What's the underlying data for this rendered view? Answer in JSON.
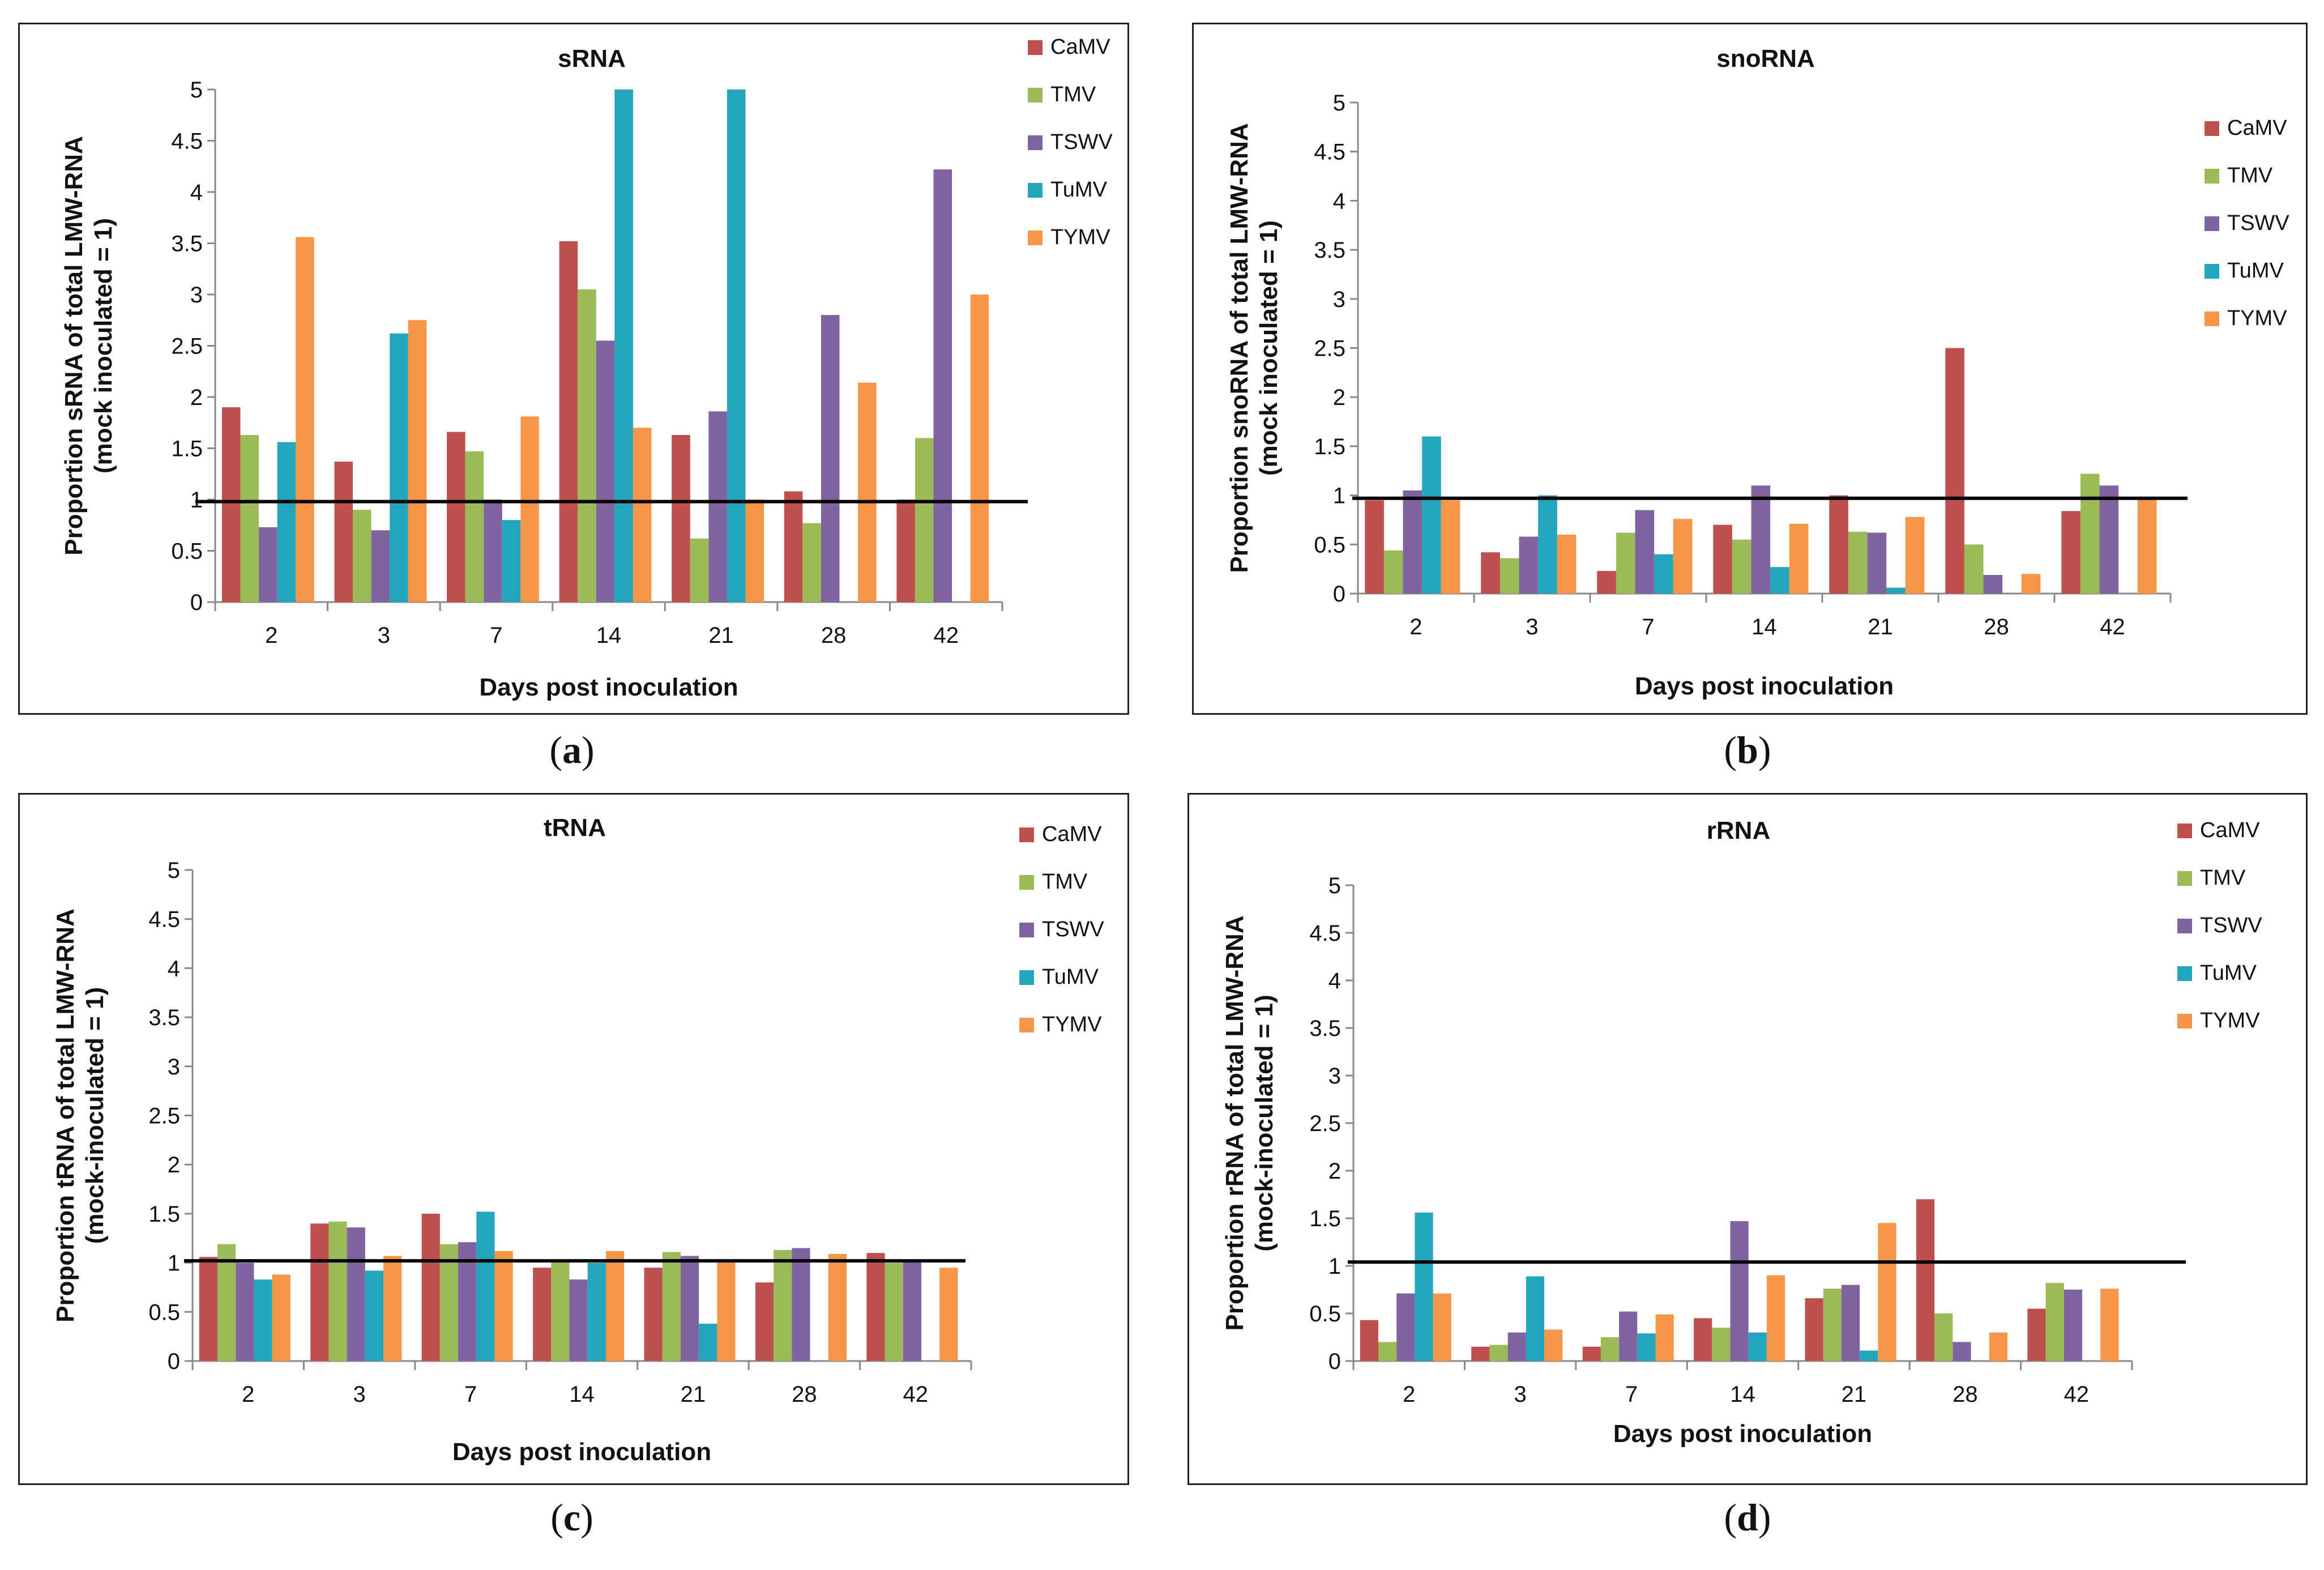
{
  "figure": {
    "panel_labels": [
      {
        "open": "(",
        "letter": "a",
        "close": ")"
      },
      {
        "open": "(",
        "letter": "b",
        "close": ")"
      },
      {
        "open": "(",
        "letter": "c",
        "close": ")"
      },
      {
        "open": "(",
        "letter": "d",
        "close": ")"
      }
    ]
  },
  "colors": {
    "CaMV": "#c0504d",
    "TMV": "#9bbb59",
    "TSWV": "#8064a2",
    "TuMV": "#23a5bd",
    "TYMV": "#f79646",
    "reference_line": "#000000"
  },
  "chart_data": [
    {
      "type": "bar",
      "title": "sRNA",
      "xlabel": "Days post inoculation",
      "ylabel_lines": [
        "Proportion  sRNA of total LMW-RNA",
        "(mock inoculated = 1)"
      ],
      "categories": [
        "2",
        "3",
        "7",
        "14",
        "21",
        "28",
        "42"
      ],
      "ylim": [
        0,
        5
      ],
      "yticks": [
        "0",
        "0.5",
        "1",
        "1.5",
        "2",
        "2.5",
        "3",
        "3.5",
        "4",
        "4.5",
        "5"
      ],
      "reference_line_y": 0.98,
      "legend_position": "top-right",
      "series": [
        {
          "name": "CaMV",
          "values": [
            1.9,
            1.37,
            1.66,
            3.52,
            1.63,
            1.08,
            1.0
          ]
        },
        {
          "name": "TMV",
          "values": [
            1.63,
            0.9,
            1.47,
            3.05,
            0.62,
            0.77,
            1.6
          ]
        },
        {
          "name": "TSWV",
          "values": [
            0.73,
            0.7,
            1.0,
            2.55,
            1.86,
            2.8,
            4.22
          ]
        },
        {
          "name": "TuMV",
          "values": [
            1.56,
            2.62,
            0.8,
            5.0,
            5.0,
            0,
            0
          ]
        },
        {
          "name": "TYMV",
          "values": [
            3.56,
            2.75,
            1.81,
            1.7,
            1.0,
            2.14,
            3.0
          ]
        }
      ]
    },
    {
      "type": "bar",
      "title": "snoRNA",
      "xlabel": "Days post inoculation",
      "ylabel_lines": [
        "Proportion snoRNA of total LMW-RNA",
        "(mock inoculated = 1)"
      ],
      "categories": [
        "2",
        "3",
        "7",
        "14",
        "21",
        "28",
        "42"
      ],
      "ylim": [
        0,
        5
      ],
      "yticks": [
        "0",
        "0.5",
        "1",
        "1.5",
        "2",
        "2.5",
        "3",
        "3.5",
        "4",
        "4.5",
        "5"
      ],
      "reference_line_y": 0.97,
      "legend_position": "right",
      "series": [
        {
          "name": "CaMV",
          "values": [
            0.95,
            0.42,
            0.23,
            0.7,
            1.0,
            2.5,
            0.84
          ]
        },
        {
          "name": "TMV",
          "values": [
            0.44,
            0.36,
            0.62,
            0.55,
            0.63,
            0.5,
            1.22
          ]
        },
        {
          "name": "TSWV",
          "values": [
            1.05,
            0.58,
            0.85,
            1.1,
            0.62,
            0.19,
            1.1
          ]
        },
        {
          "name": "TuMV",
          "values": [
            1.6,
            1.0,
            0.4,
            0.27,
            0.06,
            0,
            0
          ]
        },
        {
          "name": "TYMV",
          "values": [
            0.95,
            0.6,
            0.76,
            0.71,
            0.78,
            0.2,
            0.96
          ]
        }
      ]
    },
    {
      "type": "bar",
      "title": "tRNA",
      "xlabel": "Days post inoculation",
      "ylabel_lines": [
        "Proportion tRNA of total LMW-RNA",
        "(mock-inoculated = 1)"
      ],
      "categories": [
        "2",
        "3",
        "7",
        "14",
        "21",
        "28",
        "42"
      ],
      "ylim": [
        0,
        5
      ],
      "yticks": [
        "0",
        "0.5",
        "1",
        "1.5",
        "2",
        "2.5",
        "3",
        "3.5",
        "4",
        "4.5",
        "5"
      ],
      "reference_line_y": 1.02,
      "legend_position": "top-right",
      "series": [
        {
          "name": "CaMV",
          "values": [
            1.06,
            1.4,
            1.5,
            0.95,
            0.95,
            0.8,
            1.1
          ]
        },
        {
          "name": "TMV",
          "values": [
            1.19,
            1.42,
            1.19,
            1.01,
            1.11,
            1.13,
            1.0
          ]
        },
        {
          "name": "TSWV",
          "values": [
            1.0,
            1.36,
            1.21,
            0.83,
            1.07,
            1.15,
            1.02
          ]
        },
        {
          "name": "TuMV",
          "values": [
            0.83,
            0.92,
            1.52,
            1.0,
            0.38,
            0,
            0
          ]
        },
        {
          "name": "TYMV",
          "values": [
            0.88,
            1.07,
            1.12,
            1.12,
            1.02,
            1.09,
            0.95
          ]
        }
      ]
    },
    {
      "type": "bar",
      "title": "rRNA",
      "xlabel": "Days post inoculation",
      "ylabel_lines": [
        "Proportion rRNA of total LMW-RNA",
        "(mock-inoculated = 1)"
      ],
      "categories": [
        "2",
        "3",
        "7",
        "14",
        "21",
        "28",
        "42"
      ],
      "ylim": [
        0,
        5
      ],
      "yticks": [
        "0",
        "0.5",
        "1",
        "1.5",
        "2",
        "2.5",
        "3",
        "3.5",
        "4",
        "4.5",
        "5"
      ],
      "reference_line_y": 1.04,
      "legend_position": "top-right",
      "series": [
        {
          "name": "CaMV",
          "values": [
            0.43,
            0.15,
            0.15,
            0.45,
            0.66,
            1.7,
            0.55
          ]
        },
        {
          "name": "TMV",
          "values": [
            0.2,
            0.17,
            0.25,
            0.35,
            0.76,
            0.5,
            0.82
          ]
        },
        {
          "name": "TSWV",
          "values": [
            0.71,
            0.3,
            0.52,
            1.47,
            0.8,
            0.2,
            0.75
          ]
        },
        {
          "name": "TuMV",
          "values": [
            1.56,
            0.89,
            0.29,
            0.3,
            0.11,
            0,
            0
          ]
        },
        {
          "name": "TYMV",
          "values": [
            0.71,
            0.33,
            0.49,
            0.9,
            1.45,
            0.3,
            0.76
          ]
        }
      ]
    }
  ]
}
